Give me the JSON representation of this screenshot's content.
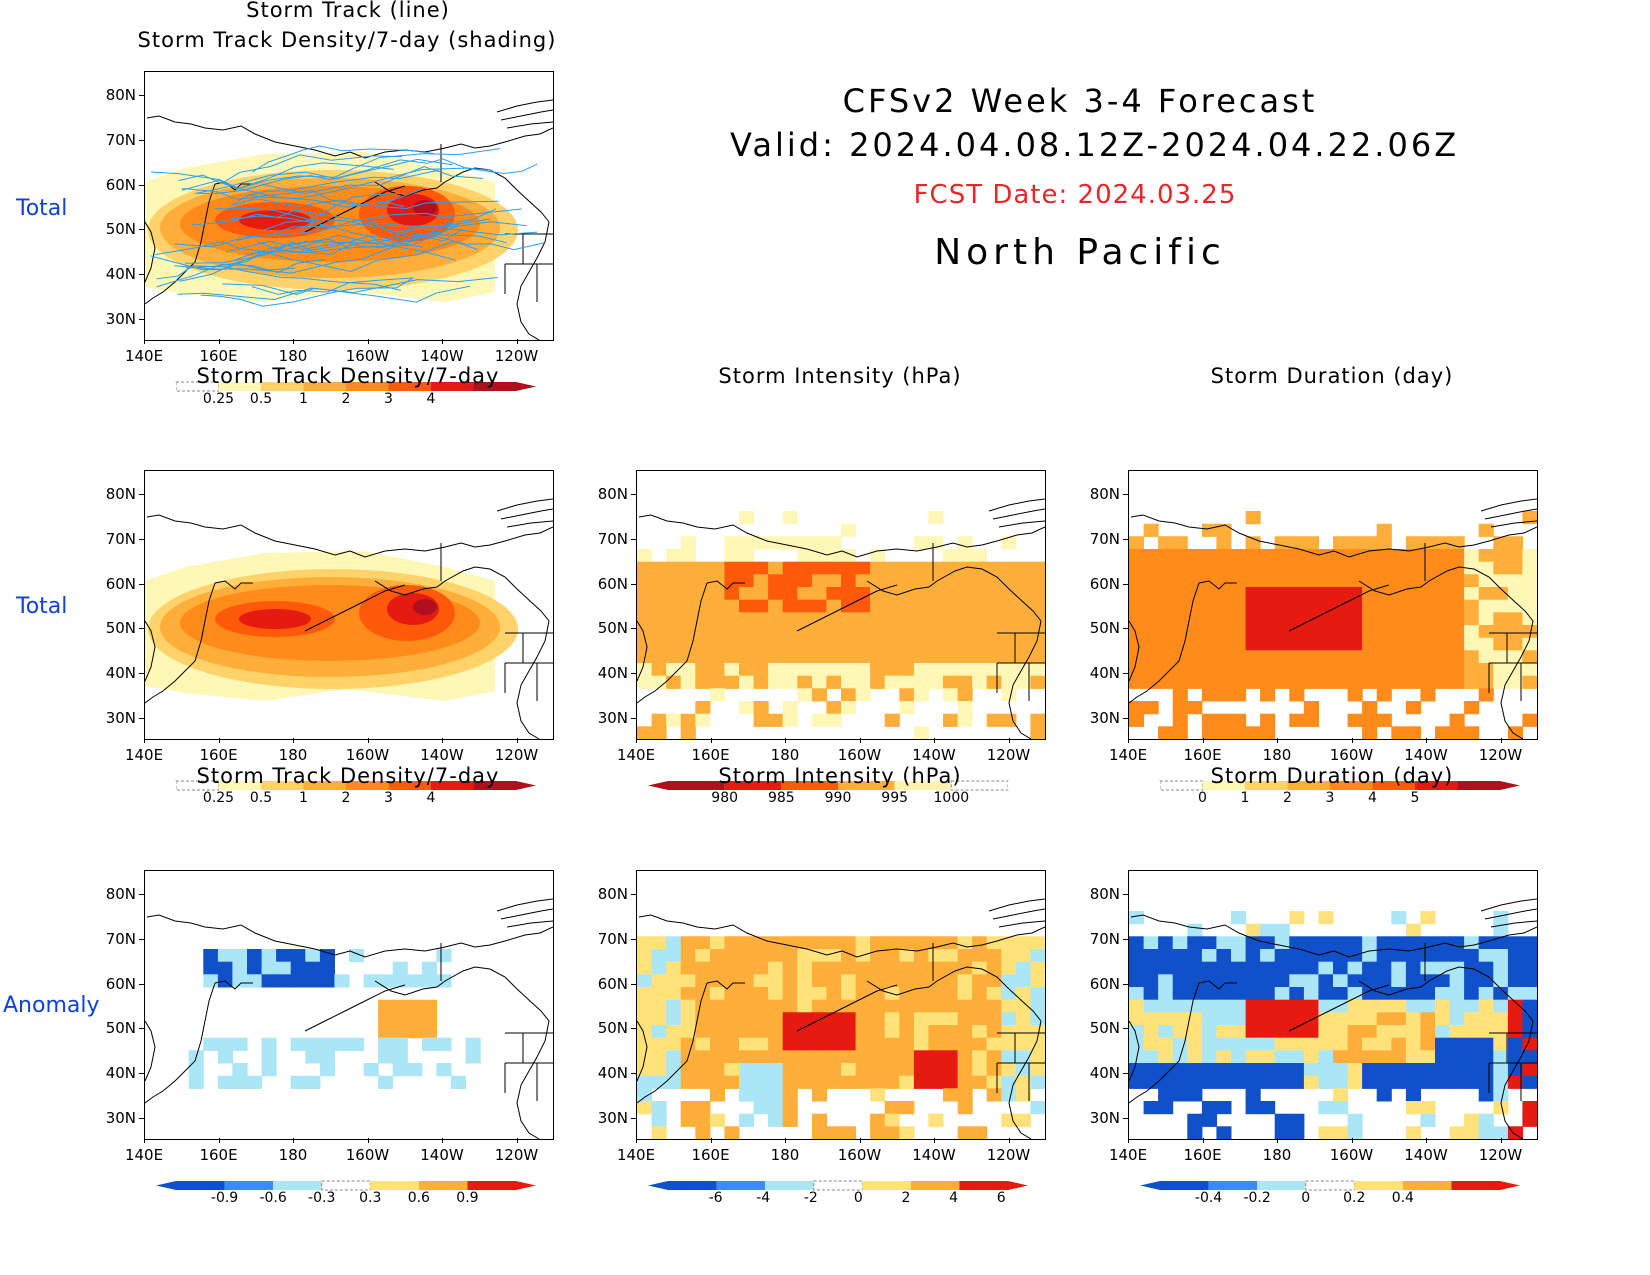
{
  "header": {
    "title_line1": "CFSv2 Week 3-4 Forecast",
    "title_line2": "Valid: 2024.04.08.12Z-2024.04.22.06Z",
    "fcst_date": "FCST Date: 2024.03.25",
    "region": "North Pacific"
  },
  "row_labels": {
    "row1": "Total",
    "row2": "Total",
    "row3": "Anomaly"
  },
  "axes": {
    "lat_labels": [
      "80N",
      "70N",
      "60N",
      "50N",
      "40N",
      "30N"
    ],
    "lon_labels": [
      "140E",
      "160E",
      "180",
      "160W",
      "140W",
      "120W"
    ]
  },
  "panels": {
    "p1": {
      "title1": "Storm Track (line)",
      "title2": "Storm Track Density/7-day (shading)",
      "colorbar": [
        "0.25",
        "0.5",
        "1",
        "2",
        "3",
        "4"
      ]
    },
    "p2": {
      "title": "Storm Track Density/7-day",
      "colorbar": [
        "0.25",
        "0.5",
        "1",
        "2",
        "3",
        "4"
      ]
    },
    "p3": {
      "title": "Storm Intensity (hPa)",
      "colorbar": [
        "980",
        "985",
        "990",
        "995",
        "1000"
      ]
    },
    "p4": {
      "title": "Storm Duration (day)",
      "colorbar": [
        "0",
        "1",
        "2",
        "3",
        "4",
        "5"
      ]
    },
    "p5": {
      "title": "Storm Track Density/7-day",
      "colorbar": [
        "-0.9",
        "-0.6",
        "-0.3",
        "0.3",
        "0.6",
        "0.9"
      ]
    },
    "p6": {
      "title": "Storm Intensity (hPa)",
      "colorbar": [
        "-6",
        "-4",
        "-2",
        "0",
        "2",
        "4",
        "6"
      ]
    },
    "p7": {
      "title": "Storm Duration (day)",
      "colorbar": [
        "-0.4",
        "-0.2",
        "0",
        "0.2",
        "0.4"
      ]
    }
  },
  "colors": {
    "warm": [
      "#fff7b5",
      "#ffd26a",
      "#ffae3a",
      "#ff8c1a",
      "#ff5a0a",
      "#e61a10",
      "#b0101e"
    ],
    "intensity": [
      "#b0101e",
      "#e61a10",
      "#ff5a0a",
      "#ffae3a",
      "#fff2b0"
    ],
    "anomaly": [
      "#1050c8",
      "#3c8cf0",
      "#aae6f5",
      "#ffffff",
      "#ffe27a",
      "#ffae3a",
      "#e61a10"
    ],
    "track_line": "#2aa0f0",
    "row_label": "#1040e0",
    "fcst_date": "#e8262a"
  }
}
